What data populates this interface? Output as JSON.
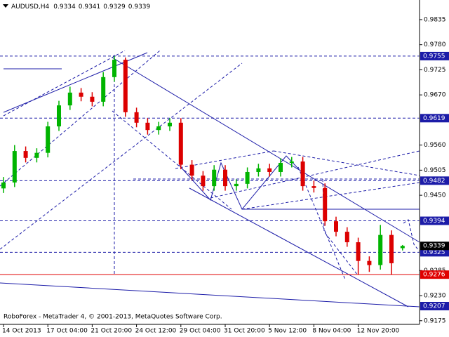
{
  "chart_data": {
    "type": "candlestick",
    "title": "AUDUSD,H4",
    "quote": [
      0.9334,
      0.9341,
      0.9329,
      0.9339
    ],
    "footer": "RoboForex - MetaTrader 4, © 2001-2013, MetaQuotes Software Corp.",
    "categories": [
      "14 Oct 2013",
      null,
      null,
      null,
      "17 Oct 04:00",
      null,
      null,
      null,
      "21 Oct 20:00",
      null,
      null,
      null,
      "24 Oct 12:00",
      null,
      null,
      null,
      "29 Oct 04:00",
      null,
      null,
      null,
      "31 Oct 20:00",
      null,
      null,
      null,
      "5 Nov 12:00",
      null,
      null,
      null,
      "8 Nov 04:00",
      null,
      null,
      null,
      "12 Nov 20:00",
      null,
      null,
      null,
      null
    ],
    "ohlc": [
      [
        0.9465,
        0.949,
        0.9455,
        0.9478
      ],
      [
        0.9478,
        0.956,
        0.9468,
        0.9547
      ],
      [
        0.9547,
        0.9557,
        0.9522,
        0.9532
      ],
      [
        0.9532,
        0.9553,
        0.9522,
        0.9543
      ],
      [
        0.9543,
        0.9611,
        0.9533,
        0.9601
      ],
      [
        0.9601,
        0.9657,
        0.9591,
        0.9647
      ],
      [
        0.9647,
        0.9688,
        0.9637,
        0.9675
      ],
      [
        0.9675,
        0.9685,
        0.9656,
        0.9666
      ],
      [
        0.9666,
        0.9676,
        0.9645,
        0.9655
      ],
      [
        0.9655,
        0.972,
        0.9645,
        0.9709
      ],
      [
        0.9709,
        0.9755,
        0.9699,
        0.9747
      ],
      [
        0.9747,
        0.9752,
        0.9622,
        0.9632
      ],
      [
        0.9632,
        0.9642,
        0.9599,
        0.9609
      ],
      [
        0.9609,
        0.9619,
        0.9583,
        0.9593
      ],
      [
        0.9593,
        0.9611,
        0.9583,
        0.9601
      ],
      [
        0.9601,
        0.9619,
        0.9591,
        0.9609
      ],
      [
        0.9609,
        0.9619,
        0.9507,
        0.9517
      ],
      [
        0.9517,
        0.9527,
        0.9483,
        0.9493
      ],
      [
        0.9493,
        0.9503,
        0.946,
        0.947
      ],
      [
        0.947,
        0.9516,
        0.946,
        0.9506
      ],
      [
        0.9506,
        0.9516,
        0.946,
        0.947
      ],
      [
        0.947,
        0.9485,
        0.946,
        0.9475
      ],
      [
        0.9475,
        0.9511,
        0.9465,
        0.9501
      ],
      [
        0.9501,
        0.9519,
        0.9491,
        0.9509
      ],
      [
        0.9509,
        0.9519,
        0.9491,
        0.9501
      ],
      [
        0.9501,
        0.9531,
        0.9491,
        0.9521
      ],
      [
        0.9521,
        0.9534,
        0.9511,
        0.9524
      ],
      [
        0.9524,
        0.9534,
        0.946,
        0.947
      ],
      [
        0.947,
        0.9482,
        0.9456,
        0.9466
      ],
      [
        0.9466,
        0.9476,
        0.9383,
        0.9393
      ],
      [
        0.9393,
        0.9403,
        0.936,
        0.937
      ],
      [
        0.937,
        0.938,
        0.9337,
        0.9347
      ],
      [
        0.9347,
        0.9357,
        0.9276,
        0.9306
      ],
      [
        0.9306,
        0.9316,
        0.9282,
        0.9297
      ],
      [
        0.9297,
        0.9385,
        0.9287,
        0.9363
      ],
      [
        0.9363,
        0.9373,
        0.9276,
        0.9301
      ],
      [
        0.9334,
        0.9341,
        0.9329,
        0.9339
      ]
    ],
    "up_color": "#00b400",
    "down_color": "#dc0000",
    "ylim": [
      0.9167,
      0.9878
    ],
    "yticks": [
      0.9835,
      {
        "value": 0.978,
        "label": "0.9780"
      },
      0.9725,
      {
        "value": 0.967,
        "label": "0.9670"
      },
      {
        "value": 0.956,
        "label": "0.9560"
      },
      0.9505,
      {
        "value": 0.945,
        "label": "0.9450"
      },
      0.9285,
      {
        "value": 0.923,
        "label": "0.9230"
      },
      0.9175
    ],
    "levels": [
      {
        "value": 0.9755,
        "color": "#1c1ca8",
        "style": "dashed"
      },
      {
        "value": 0.9619,
        "color": "#1c1ca8",
        "style": "dashed"
      },
      {
        "value": 0.9482,
        "color": "#1c1ca8",
        "style": "dashed"
      },
      {
        "value": 0.9394,
        "color": "#1c1ca8",
        "style": "dashed"
      },
      {
        "value": 0.9325,
        "color": "#1c1ca8",
        "style": "dashed"
      },
      {
        "value": 0.9276,
        "color": "#e00000",
        "style": "solid"
      },
      {
        "value": 0.9207,
        "color": "#1c1ca8",
        "style": "none"
      }
    ],
    "current": {
      "value": 0.9339,
      "color": "#000000"
    }
  }
}
